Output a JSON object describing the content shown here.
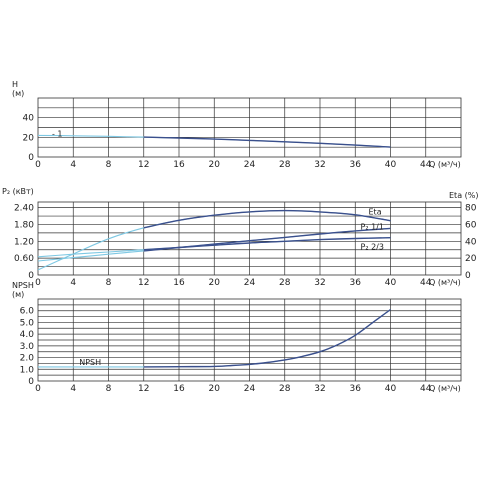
{
  "chart_data": [
    {
      "type": "line",
      "panel": "head",
      "ylabel": "H",
      "yunit": "(м)",
      "xlabel": "Q (м³/ч)",
      "xlim": [
        0,
        48
      ],
      "x_ticks": [
        "0",
        "4",
        "8",
        "12",
        "16",
        "20",
        "24",
        "28",
        "32",
        "36",
        "40",
        "44"
      ],
      "ylim": [
        0,
        60
      ],
      "y_ticks": [
        "0",
        "20",
        "40"
      ],
      "grid": true,
      "annotation": "- 1",
      "series": [
        {
          "name": "",
          "x": [
            0,
            4,
            8,
            12,
            16,
            20,
            24,
            28,
            32,
            36,
            40
          ],
          "y": [
            22,
            21.6,
            21,
            20.2,
            19.3,
            18.2,
            16.9,
            15.5,
            13.9,
            12.1,
            10.1
          ]
        }
      ]
    },
    {
      "type": "line",
      "panel": "power-efficiency",
      "ylabel": "P₂ (кВт)",
      "ylabel_right": "Eta (%)",
      "xlabel": "Q (м³/ч)",
      "xlim": [
        0,
        48
      ],
      "x_ticks": [
        "0",
        "4",
        "8",
        "12",
        "16",
        "20",
        "24",
        "28",
        "32",
        "36",
        "40",
        "44"
      ],
      "ylim": [
        0,
        2.6
      ],
      "y_ticks": [
        "0",
        "0.60",
        "1.20",
        "1.80",
        "2.40"
      ],
      "ylim_right": [
        0,
        86.7
      ],
      "y_ticks_right": [
        "0",
        "20",
        "40",
        "60",
        "80"
      ],
      "grid": true,
      "series": [
        {
          "name": "Eta",
          "axis": "right",
          "x": [
            0,
            4,
            8,
            12,
            16,
            20,
            24,
            28,
            32,
            36,
            40
          ],
          "y": [
            6,
            25,
            43,
            56,
            65,
            71,
            75,
            76.5,
            75,
            71.5,
            64.5
          ]
        },
        {
          "name": "P₂ 1/1",
          "axis": "left",
          "x": [
            0,
            4,
            8,
            12,
            16,
            20,
            24,
            28,
            32,
            36,
            40
          ],
          "y": [
            0.5,
            0.62,
            0.74,
            0.86,
            0.98,
            1.1,
            1.22,
            1.34,
            1.46,
            1.57,
            1.66
          ]
        },
        {
          "name": "P₂ 2/3",
          "axis": "left",
          "x": [
            0,
            4,
            8,
            12,
            16,
            20,
            24,
            28,
            32,
            36,
            40
          ],
          "y": [
            0.65,
            0.74,
            0.82,
            0.9,
            0.98,
            1.06,
            1.14,
            1.2,
            1.26,
            1.3,
            1.33
          ]
        }
      ]
    },
    {
      "type": "line",
      "panel": "npsh",
      "ylabel": "NPSH",
      "yunit": "(м)",
      "xlabel": "Q (м³/ч)",
      "xlim": [
        0,
        48
      ],
      "x_ticks": [
        "0",
        "4",
        "8",
        "12",
        "16",
        "20",
        "24",
        "28",
        "32",
        "36",
        "40",
        "44"
      ],
      "ylim": [
        0,
        7
      ],
      "y_ticks": [
        "0",
        "1.0",
        "2.0",
        "3.0",
        "4.0",
        "5.0",
        "6.0"
      ],
      "grid": true,
      "series": [
        {
          "name": "NPSH",
          "x": [
            0,
            4,
            8,
            12,
            16,
            20,
            22,
            24,
            26,
            28,
            30,
            32,
            34,
            36,
            38,
            40
          ],
          "y": [
            1.2,
            1.2,
            1.2,
            1.2,
            1.22,
            1.25,
            1.32,
            1.42,
            1.58,
            1.8,
            2.1,
            2.5,
            3.1,
            3.9,
            5.0,
            6.1
          ]
        }
      ]
    }
  ]
}
